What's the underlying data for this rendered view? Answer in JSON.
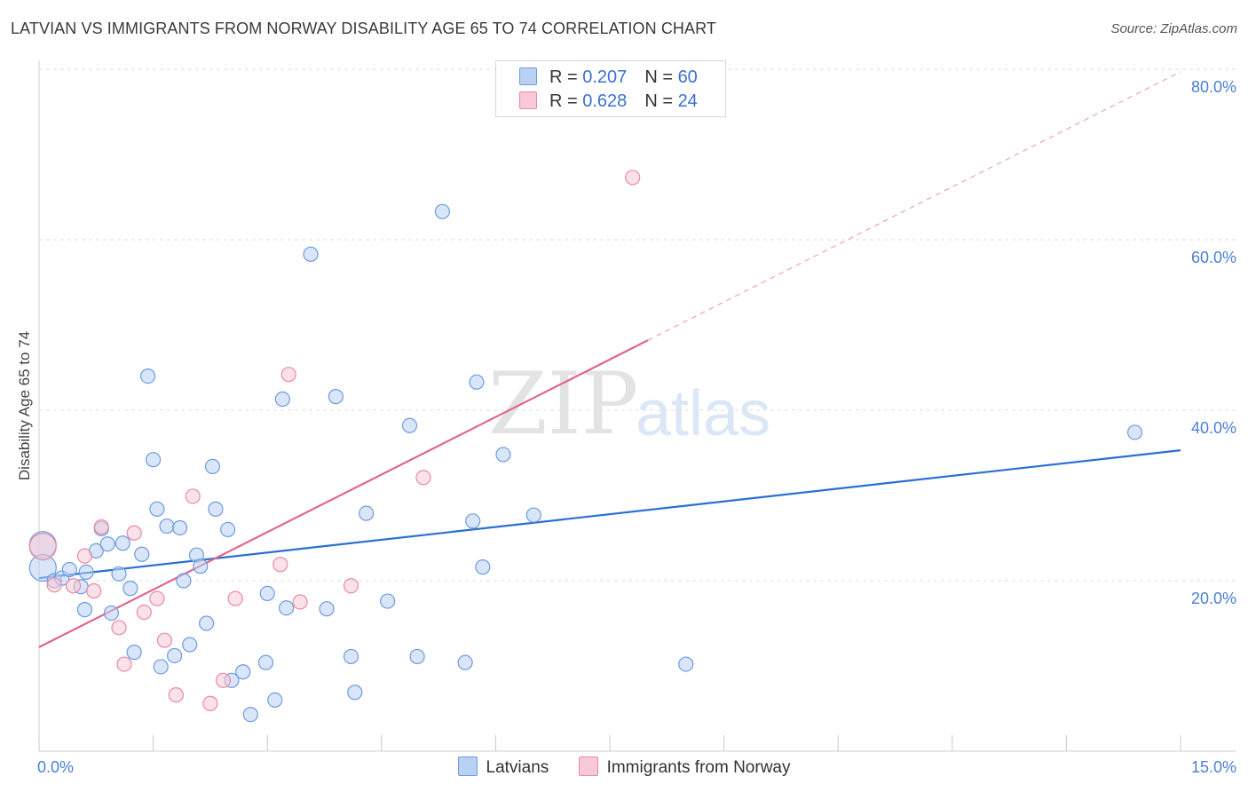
{
  "title": "LATVIAN VS IMMIGRANTS FROM NORWAY DISABILITY AGE 65 TO 74 CORRELATION CHART",
  "source": "Source: ZipAtlas.com",
  "watermark": {
    "zip": "ZIP",
    "atlas": "atlas"
  },
  "colors": {
    "blue_fill": "#b9d2f4",
    "blue_stroke": "#6d9be0",
    "blue_line": "#2a6fd3",
    "pink_fill": "#f8c9d6",
    "pink_stroke": "#e88aa6",
    "pink_line": "#e0648f",
    "tick": "#4a7fd4",
    "grid": "#dedede"
  },
  "legend_top": [
    {
      "r_label": "R = ",
      "r_value": "0.207",
      "n_label": "N = ",
      "n_value": "60"
    },
    {
      "r_label": "R = ",
      "r_value": "0.628",
      "n_label": "N = ",
      "n_value": "24"
    }
  ],
  "legend_bottom": [
    "Latvians",
    "Immigrants from Norway"
  ],
  "chart_data": {
    "type": "scatter",
    "title": "LATVIAN VS IMMIGRANTS FROM NORWAY DISABILITY AGE 65 TO 74 CORRELATION CHART",
    "xlabel": "",
    "ylabel": "Disability Age 65 to 74",
    "xlim": [
      0,
      15
    ],
    "ylim": [
      0,
      80
    ],
    "x_tick_labels": [
      "0.0%",
      "15.0%"
    ],
    "y_ticks": [
      20,
      40,
      60,
      80
    ],
    "y_tick_labels": [
      "20.0%",
      "40.0%",
      "60.0%",
      "80.0%"
    ],
    "grid": true,
    "series": [
      {
        "name": "Latvians",
        "R": 0.207,
        "N": 60,
        "trend": {
          "x0": 0,
          "y0": 20.3,
          "x1": 15,
          "y1": 35.3
        },
        "points": [
          [
            0.05,
            24.2
          ],
          [
            0.05,
            21.5
          ],
          [
            0.2,
            20.0
          ],
          [
            0.3,
            20.3
          ],
          [
            0.4,
            21.3
          ],
          [
            0.55,
            19.3
          ],
          [
            0.6,
            16.6
          ],
          [
            0.62,
            21.0
          ],
          [
            0.75,
            23.5
          ],
          [
            0.82,
            26.1
          ],
          [
            0.9,
            24.3
          ],
          [
            0.95,
            16.2
          ],
          [
            1.05,
            20.8
          ],
          [
            1.1,
            24.4
          ],
          [
            1.2,
            19.1
          ],
          [
            1.25,
            11.6
          ],
          [
            1.35,
            23.1
          ],
          [
            1.43,
            44.0
          ],
          [
            1.5,
            34.2
          ],
          [
            1.55,
            28.4
          ],
          [
            1.6,
            9.9
          ],
          [
            1.68,
            26.4
          ],
          [
            1.78,
            11.2
          ],
          [
            1.85,
            26.2
          ],
          [
            1.9,
            20.0
          ],
          [
            1.98,
            12.5
          ],
          [
            2.07,
            23.0
          ],
          [
            2.12,
            21.7
          ],
          [
            2.2,
            15.0
          ],
          [
            2.28,
            33.4
          ],
          [
            2.32,
            28.4
          ],
          [
            2.48,
            26.0
          ],
          [
            2.53,
            8.3
          ],
          [
            2.68,
            9.3
          ],
          [
            2.78,
            4.3
          ],
          [
            2.98,
            10.4
          ],
          [
            3.0,
            18.5
          ],
          [
            3.1,
            6.0
          ],
          [
            3.2,
            41.3
          ],
          [
            3.25,
            16.8
          ],
          [
            3.57,
            58.3
          ],
          [
            3.78,
            16.7
          ],
          [
            3.9,
            41.6
          ],
          [
            4.1,
            11.1
          ],
          [
            4.15,
            6.9
          ],
          [
            4.3,
            27.9
          ],
          [
            4.58,
            17.6
          ],
          [
            4.87,
            38.2
          ],
          [
            4.97,
            11.1
          ],
          [
            5.3,
            63.3
          ],
          [
            5.6,
            10.4
          ],
          [
            5.7,
            27.0
          ],
          [
            5.75,
            43.3
          ],
          [
            5.83,
            21.6
          ],
          [
            6.1,
            34.8
          ],
          [
            6.5,
            27.7
          ],
          [
            8.5,
            10.2
          ],
          [
            14.4,
            37.4
          ]
        ]
      },
      {
        "name": "Immigrants from Norway",
        "R": 0.628,
        "N": 24,
        "trend": {
          "x0": 0,
          "y0": 12.2,
          "x1": 8.0,
          "y1": 48.2
        },
        "trend_extension": {
          "x0": 8.0,
          "y0": 48.2,
          "x1": 15,
          "y1": 79.7
        },
        "points": [
          [
            0.05,
            24.0
          ],
          [
            0.2,
            19.5
          ],
          [
            0.45,
            19.4
          ],
          [
            0.6,
            22.9
          ],
          [
            0.72,
            18.8
          ],
          [
            0.82,
            26.3
          ],
          [
            1.05,
            14.5
          ],
          [
            1.12,
            10.2
          ],
          [
            1.25,
            25.6
          ],
          [
            1.38,
            16.3
          ],
          [
            1.55,
            17.9
          ],
          [
            1.65,
            13.0
          ],
          [
            1.8,
            6.6
          ],
          [
            2.02,
            29.9
          ],
          [
            2.25,
            5.6
          ],
          [
            2.42,
            8.3
          ],
          [
            2.58,
            17.9
          ],
          [
            3.17,
            21.9
          ],
          [
            3.28,
            44.2
          ],
          [
            3.43,
            17.5
          ],
          [
            4.1,
            19.4
          ],
          [
            5.05,
            32.1
          ],
          [
            7.8,
            67.3
          ]
        ]
      }
    ]
  }
}
